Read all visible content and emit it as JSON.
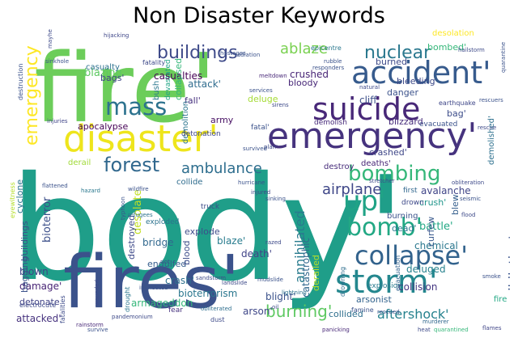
{
  "chart_data": {
    "type": "wordcloud",
    "title": "Non Disaster Keywords",
    "words": [
      {
        "text": "body'",
        "color": "#1f9e89"
      },
      {
        "text": "fire'",
        "color": "#6ccd5a"
      },
      {
        "text": "fires'",
        "color": "#3b528b"
      },
      {
        "text": "suicide",
        "color": "#482878"
      },
      {
        "text": "emergency'",
        "color": "#46337e"
      },
      {
        "text": "disaster'",
        "color": "#eee51c"
      },
      {
        "text": "accident'",
        "color": "#375b8d"
      },
      {
        "text": "storm'",
        "color": "#24878e"
      },
      {
        "text": "collapse'",
        "color": "#33638d"
      },
      {
        "text": "bomb'",
        "color": "#22a884"
      },
      {
        "text": "bombing",
        "color": "#35b779"
      },
      {
        "text": "up'",
        "color": "#20a386"
      },
      {
        "text": "mass",
        "color": "#2c728e"
      },
      {
        "text": "forest",
        "color": "#31688e"
      },
      {
        "text": "buildings",
        "color": "#3e4a89"
      },
      {
        "text": "nuclear",
        "color": "#2a788e"
      },
      {
        "text": "emergency",
        "color": "#fde725"
      },
      {
        "text": "burning'",
        "color": "#5ec962"
      },
      {
        "text": "ablaze",
        "color": "#7ad151"
      },
      {
        "text": "ambulance",
        "color": "#2e6e8e"
      },
      {
        "text": "airplane",
        "color": "#3f4788"
      },
      {
        "text": "aftershock'",
        "color": "#26828e"
      },
      {
        "text": "annihilated",
        "color": "#297b8e"
      },
      {
        "text": "annihilation'",
        "color": "#3a548c"
      },
      {
        "text": "bioterror",
        "color": "#3c4f8a"
      },
      {
        "text": "blazing",
        "color": "#5ec962"
      },
      {
        "text": "casualties",
        "color": "#440154"
      },
      {
        "text": "crushed",
        "color": "#482576"
      },
      {
        "text": "catastrophic",
        "color": "#31678e"
      },
      {
        "text": "armageddon",
        "color": "#35b779"
      },
      {
        "text": "bioterrorism",
        "color": "#2a768e"
      },
      {
        "text": "desolate",
        "color": "#c2df23"
      },
      {
        "text": "destroyed",
        "color": "#3e4989"
      },
      {
        "text": "collision",
        "color": "#453781"
      },
      {
        "text": "derailed",
        "color": "#b5de2b"
      },
      {
        "text": "battle'",
        "color": "#22a884"
      },
      {
        "text": "blight'",
        "color": "#3b528b"
      },
      {
        "text": "bridge",
        "color": "#31688e"
      },
      {
        "text": "blown",
        "color": "#404688"
      },
      {
        "text": "damage'",
        "color": "#482475"
      },
      {
        "text": "detonate",
        "color": "#414487"
      },
      {
        "text": "attacked'",
        "color": "#46327e"
      },
      {
        "text": "bagging'",
        "color": "#3b528b"
      },
      {
        "text": "buildings",
        "color": "#3b528b"
      },
      {
        "text": "cyclone",
        "color": "#2c728e"
      },
      {
        "text": "deluged",
        "color": "#26818e"
      },
      {
        "text": "chemical",
        "color": "#2a778e"
      },
      {
        "text": "avalanche",
        "color": "#404588"
      },
      {
        "text": "curfew",
        "color": "#38588c"
      },
      {
        "text": "blew",
        "color": "#355f8d"
      },
      {
        "text": "arsonist",
        "color": "#33638d"
      },
      {
        "text": "arson'",
        "color": "#3f4788"
      },
      {
        "text": "collided",
        "color": "#2e6f8e"
      },
      {
        "text": "death'",
        "color": "#414487"
      },
      {
        "text": "blaze'",
        "color": "#287c8e"
      },
      {
        "text": "explode",
        "color": "#3e4c8a"
      },
      {
        "text": "engulfed",
        "color": "#365d8d"
      },
      {
        "text": "crash'",
        "color": "#2d708e"
      },
      {
        "text": "blood",
        "color": "#3d4e8a"
      },
      {
        "text": "apocalypse",
        "color": "#440154"
      },
      {
        "text": "army",
        "color": "#471063"
      },
      {
        "text": "bloody",
        "color": "#482878"
      },
      {
        "text": "danger",
        "color": "#3b528b"
      },
      {
        "text": "bleeding",
        "color": "#3e4a89"
      },
      {
        "text": "cliff",
        "color": "#3c4f8a"
      },
      {
        "text": "blizzard",
        "color": "#472d7b"
      },
      {
        "text": "fall'",
        "color": "#46307e"
      },
      {
        "text": "bush",
        "color": "#2a778e"
      },
      {
        "text": "collapsed",
        "color": "#35b779"
      },
      {
        "text": "demolition",
        "color": "#2b748e"
      },
      {
        "text": "devastated",
        "color": "#20a486"
      },
      {
        "text": "attack'",
        "color": "#2f6c8e"
      },
      {
        "text": "bags'",
        "color": "#404588"
      },
      {
        "text": "casualty",
        "color": "#2c718e"
      },
      {
        "text": "deluge",
        "color": "#a5db36"
      },
      {
        "text": "burned",
        "color": "#3e4a89"
      },
      {
        "text": "bombed'",
        "color": "#35b779"
      },
      {
        "text": "desolation",
        "color": "#fde725"
      },
      {
        "text": "crashed'",
        "color": "#3f4788"
      },
      {
        "text": "evacuated",
        "color": "#3b528b"
      },
      {
        "text": "bag'",
        "color": "#3d4d8a"
      },
      {
        "text": "demolished'",
        "color": "#2d708e"
      },
      {
        "text": "deaths'",
        "color": "#482576"
      },
      {
        "text": "fatal'",
        "color": "#3b528b"
      },
      {
        "text": "demolish",
        "color": "#472a7a"
      },
      {
        "text": "detonation",
        "color": "#3f4788"
      },
      {
        "text": "derail",
        "color": "#a0da39"
      },
      {
        "text": "collide",
        "color": "#2f6c8e"
      },
      {
        "text": "truck",
        "color": "#3d4d8a"
      },
      {
        "text": "exploded",
        "color": "#2c728e"
      },
      {
        "text": "destroy",
        "color": "#472d7b"
      },
      {
        "text": "crush'",
        "color": "#1f958b"
      },
      {
        "text": "drown",
        "color": "#3e4989"
      },
      {
        "text": "first",
        "color": "#31678e"
      },
      {
        "text": "dead'",
        "color": "#2a778e"
      },
      {
        "text": "burning",
        "color": "#3b528b"
      },
      {
        "text": "fear",
        "color": "#46327e"
      },
      {
        "text": "fire",
        "color": "#22a884"
      },
      {
        "text": "drowning",
        "color": "#2e6e8e"
      },
      {
        "text": "explosion",
        "color": "#297a8e"
      },
      {
        "text": "rescued",
        "color": "#3b528b"
      },
      {
        "text": "panicking",
        "color": "#482878"
      },
      {
        "text": "murderer",
        "color": "#31688e"
      },
      {
        "text": "flames",
        "color": "#404688"
      },
      {
        "text": "heat",
        "color": "#3e4a89"
      },
      {
        "text": "quarantined",
        "color": "#35b779"
      },
      {
        "text": "electrocute",
        "color": "#3e4a89"
      },
      {
        "text": "eyewitness",
        "color": "#b5de2b"
      },
      {
        "text": "evacuation",
        "color": "#33638d"
      },
      {
        "text": "earthquake",
        "color": "#3f4788"
      },
      {
        "text": "epicentre",
        "color": "#2a788e"
      },
      {
        "text": "fatality",
        "color": "#3e4989"
      },
      {
        "text": "radiation",
        "color": "#3b528b"
      },
      {
        "text": "hijacking",
        "color": "#3f4788"
      },
      {
        "text": "destruction",
        "color": "#3b528b"
      },
      {
        "text": "injuries",
        "color": "#404588"
      },
      {
        "text": "refugees",
        "color": "#2c728e"
      },
      {
        "text": "famine",
        "color": "#3b528b"
      },
      {
        "text": "lightning",
        "color": "#2c718e"
      },
      {
        "text": "obliterated",
        "color": "#2e6e8e"
      },
      {
        "text": "dust",
        "color": "#3e4a89"
      },
      {
        "text": "drought",
        "color": "#2a768e"
      },
      {
        "text": "injured",
        "color": "#3f4788"
      },
      {
        "text": "flood",
        "color": "#3e4a89"
      },
      {
        "text": "hurricane",
        "color": "#3b528b"
      },
      {
        "text": "rainstorm",
        "color": "#482878"
      },
      {
        "text": "survive",
        "color": "#3b528b"
      },
      {
        "text": "fatalities",
        "color": "#3e4c8a"
      },
      {
        "text": "hostages",
        "color": "#3b528b"
      },
      {
        "text": "meltdown",
        "color": "#482878"
      },
      {
        "text": "services",
        "color": "#3b528b"
      },
      {
        "text": "sinkhole",
        "color": "#3b528b"
      },
      {
        "text": "sirens",
        "color": "#3e4a89"
      },
      {
        "text": "plan'",
        "color": "#3e4a89"
      },
      {
        "text": "hazard",
        "color": "#2a788e"
      },
      {
        "text": "flattened",
        "color": "#3b528b"
      },
      {
        "text": "riot",
        "color": "#3e4a89"
      },
      {
        "text": "panic",
        "color": "#2c728e"
      },
      {
        "text": "oil",
        "color": "#3e4a89"
      },
      {
        "text": "smoke",
        "color": "#3b528b"
      },
      {
        "text": "seismic",
        "color": "#3b528b"
      },
      {
        "text": "stretcher",
        "color": "#3e4a89"
      },
      {
        "text": "survived",
        "color": "#3b528b"
      },
      {
        "text": "obliteration",
        "color": "#3e4a89"
      },
      {
        "text": "inundated",
        "color": "#3b528b"
      },
      {
        "text": "razed",
        "color": "#3e4a89"
      },
      {
        "text": "sinking",
        "color": "#3b528b"
      },
      {
        "text": "landslide",
        "color": "#3e4a89"
      },
      {
        "text": "mudslide",
        "color": "#3b528b"
      },
      {
        "text": "sandstorm",
        "color": "#3e4a89"
      },
      {
        "text": "typhoon",
        "color": "#3b528b"
      },
      {
        "text": "wounded",
        "color": "#3e4a89"
      },
      {
        "text": "rubble",
        "color": "#3b528b"
      },
      {
        "text": "responders",
        "color": "#3b528b"
      },
      {
        "text": "hailstorm",
        "color": "#3e4a89"
      },
      {
        "text": "failure",
        "color": "#3b528b"
      },
      {
        "text": "quarantine",
        "color": "#3b528b"
      },
      {
        "text": "natural",
        "color": "#3e4a89"
      },
      {
        "text": "rescuers",
        "color": "#3b528b"
      },
      {
        "text": "rescue",
        "color": "#3e4a89"
      },
      {
        "text": "pandemonium",
        "color": "#3e4a89"
      },
      {
        "text": "mayhem",
        "color": "#3e4a89"
      },
      {
        "text": "wildfire",
        "color": "#3b528b"
      }
    ]
  }
}
